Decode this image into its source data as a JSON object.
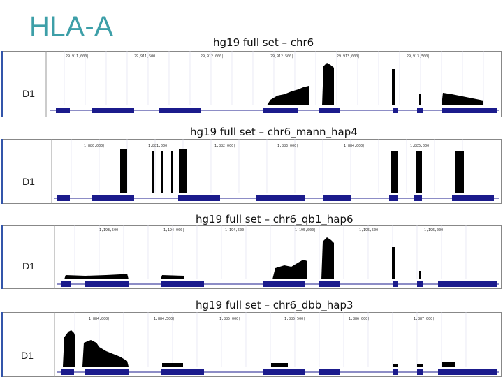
{
  "slide": {
    "title": "HLA-A"
  },
  "panels": [
    {
      "label": "hg19 full set – chr6",
      "track": "D1",
      "coords": [
        "29,911,000|",
        "29,911,500|",
        "29,912,000|",
        "29,912,500|",
        "29,913,000|",
        "29,913,500|"
      ]
    },
    {
      "label": "hg19 full set – chr6_mann_hap4",
      "track": "D1",
      "coords": [
        "1,880,000|",
        "1,881,000|",
        "1,882,000|",
        "1,883,000|",
        "1,884,000|",
        "1,885,000|"
      ]
    },
    {
      "label": "hg19 full set – chr6_qb1_hap6",
      "track": "D1",
      "coords": [
        "1,193,500|",
        "1,194,000|",
        "1,194,500|",
        "1,195,000|",
        "1,195,500|",
        "1,196,000|"
      ]
    },
    {
      "label": "hg19 full set – chr6_dbb_hap3",
      "track": "D1",
      "coords": [
        "1,884,000|",
        "1,884,500|",
        "1,885,000|",
        "1,885,500|",
        "1,886,000|",
        "1,887,000|"
      ]
    }
  ]
}
